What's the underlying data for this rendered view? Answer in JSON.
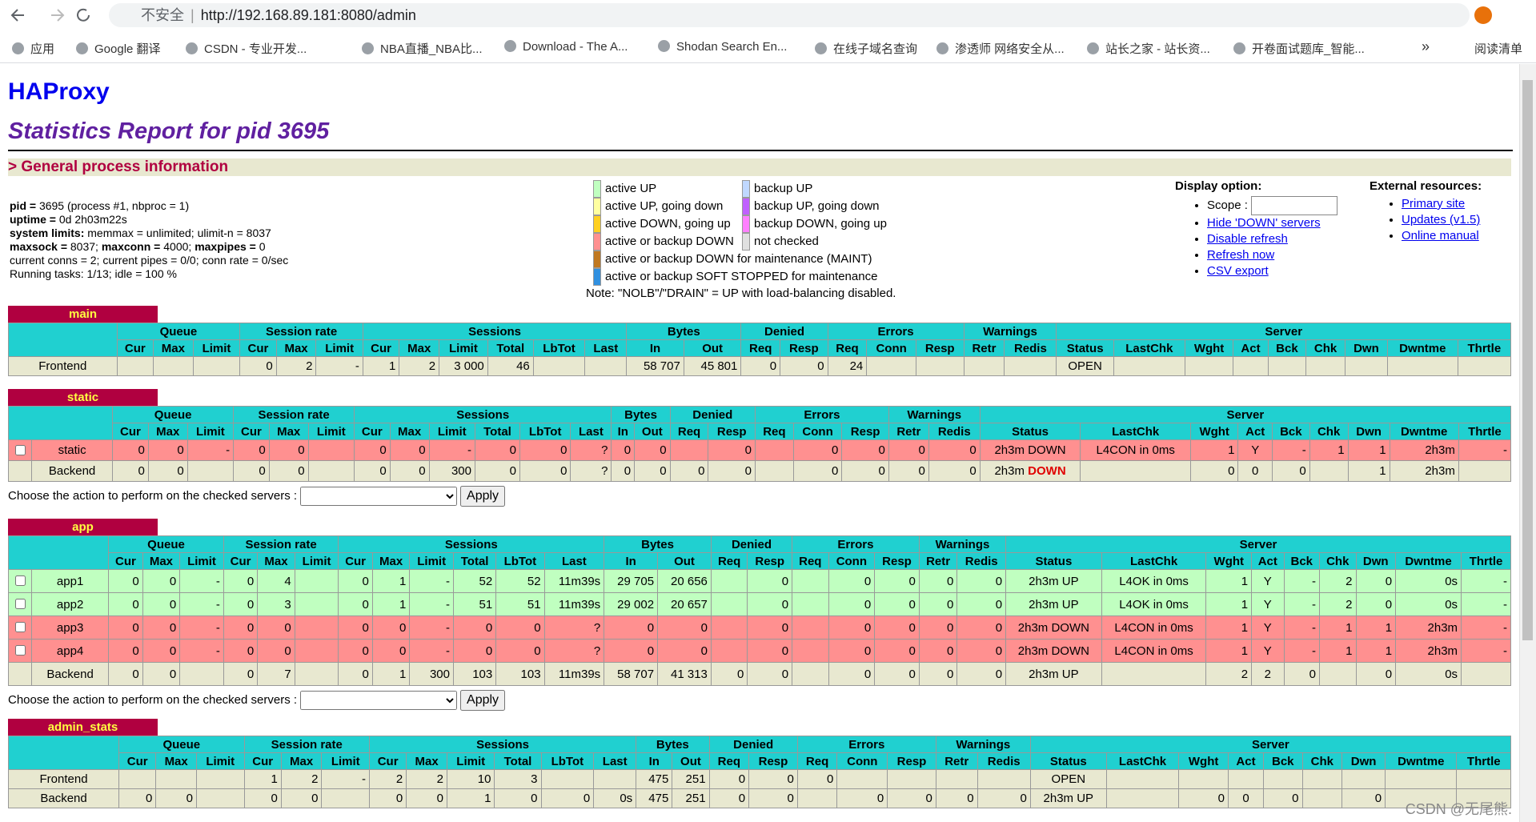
{
  "browser": {
    "security": "不安全",
    "url": "http://192.168.89.181:8080/admin",
    "bookmarks": [
      "应用",
      "Google 翻译",
      "CSDN - 专业开发...",
      "NBA直播_NBA比...",
      "Download - The A...",
      "Shodan Search En...",
      "在线子域名查询",
      "渗透师 网络安全从...",
      "站长之家 - 站长资...",
      "开卷面试题库_智能..."
    ],
    "overflow": "»",
    "reading_list": "阅读清单"
  },
  "header": {
    "title": "HAProxy",
    "subtitle": "Statistics Report for pid 3695",
    "section": "> General process information"
  },
  "process_info": [
    [
      {
        "text": "pid = ",
        "bold": true
      },
      {
        "text": "3695 (process #1, nbproc = 1)"
      }
    ],
    [
      {
        "text": "uptime = ",
        "bold": true
      },
      {
        "text": "0d 2h03m22s"
      }
    ],
    [
      {
        "text": "system limits: ",
        "bold": true
      },
      {
        "text": "memmax = unlimited; ulimit-n = 8037"
      }
    ],
    [
      {
        "text": "maxsock = ",
        "bold": true
      },
      {
        "text": "8037; "
      },
      {
        "text": "maxconn = ",
        "bold": true
      },
      {
        "text": "4000; "
      },
      {
        "text": "maxpipes = ",
        "bold": true
      },
      {
        "text": "0"
      }
    ],
    [
      {
        "text": "current conns = 2; current pipes = 0/0; conn rate = 0/sec"
      }
    ],
    [
      {
        "text": "Running tasks: 1/13; idle = 100 %"
      }
    ]
  ],
  "legend": {
    "items": [
      {
        "color": "#c0ffc0",
        "label": "active UP"
      },
      {
        "color": "#ffffa0",
        "label": "active UP, going down"
      },
      {
        "color": "#ffd020",
        "label": "active DOWN, going up"
      },
      {
        "color": "#ff9090",
        "label": "active or backup DOWN"
      },
      {
        "color": "#c07820",
        "label": "active or backup DOWN for maintenance (MAINT)"
      },
      {
        "color": "#3090e0",
        "label": "active or backup SOFT STOPPED for maintenance"
      },
      {
        "color": "#c0d8ff",
        "label": "backup UP"
      },
      {
        "color": "#c060ff",
        "label": "backup UP, going down"
      },
      {
        "color": "#ff80ff",
        "label": "backup DOWN, going up"
      },
      {
        "color": "#e0e0e0",
        "label": "not checked"
      }
    ],
    "note": "Note: \"NOLB\"/\"DRAIN\" = UP with load-balancing disabled."
  },
  "display_option": {
    "title": "Display option:",
    "scope": "Scope :",
    "links": [
      "Hide 'DOWN' servers",
      "Disable refresh",
      "Refresh now",
      "CSV export"
    ]
  },
  "external_resources": {
    "title": "External resources:",
    "links": [
      "Primary site",
      "Updates (v1.5)",
      "Online manual"
    ]
  },
  "columns": [
    {
      "name": "Queue",
      "cols": [
        "Cur",
        "Max",
        "Limit"
      ]
    },
    {
      "name": "Session rate",
      "cols": [
        "Cur",
        "Max",
        "Limit"
      ]
    },
    {
      "name": "Sessions",
      "cols": [
        "Cur",
        "Max",
        "Limit",
        "Total",
        "LbTot",
        "Last"
      ]
    },
    {
      "name": "Bytes",
      "cols": [
        "In",
        "Out"
      ]
    },
    {
      "name": "Denied",
      "cols": [
        "Req",
        "Resp"
      ]
    },
    {
      "name": "Errors",
      "cols": [
        "Req",
        "Conn",
        "Resp"
      ]
    },
    {
      "name": "Warnings",
      "cols": [
        "Retr",
        "Redis"
      ]
    },
    {
      "name": "Server",
      "cols": [
        "Status",
        "LastChk",
        "Wght",
        "Act",
        "Bck",
        "Chk",
        "Dwn",
        "Dwntme",
        "Thrtle"
      ]
    }
  ],
  "actions": {
    "label": "Choose the action to perform on the checked servers :",
    "button": "Apply"
  },
  "proxies": [
    {
      "name": "main",
      "checkboxes": false,
      "rows": [
        {
          "name": "Frontend",
          "state": "frontend",
          "cells": [
            null,
            null,
            null,
            "0",
            "2",
            "-",
            "1",
            "2",
            "3 000",
            "46",
            null,
            null,
            "58 707",
            "45 801",
            "0",
            "0",
            "24",
            null,
            null,
            null,
            null,
            "OPEN",
            null,
            null,
            null,
            null,
            null,
            null,
            null,
            null
          ]
        }
      ]
    },
    {
      "name": "static",
      "checkboxes": true,
      "actions": true,
      "rows": [
        {
          "name": "static",
          "state": "down",
          "checkbox": true,
          "cells": [
            "0",
            "0",
            "-",
            "0",
            "0",
            null,
            "0",
            "0",
            "-",
            "0",
            "0",
            "?",
            "0",
            "0",
            null,
            "0",
            null,
            "0",
            "0",
            "0",
            "0",
            "2h3m DOWN",
            "L4CON in 0ms",
            "1",
            "Y",
            "-",
            "1",
            "1",
            "2h3m",
            "-"
          ]
        },
        {
          "name": "Backend",
          "state": "backend",
          "cells": [
            "0",
            "0",
            null,
            "0",
            "0",
            null,
            "0",
            "0",
            "300",
            "0",
            "0",
            "?",
            "0",
            "0",
            "0",
            "0",
            null,
            "0",
            "0",
            "0",
            "0",
            [
              "2h3m",
              "DOWN"
            ],
            null,
            "0",
            "0",
            "0",
            null,
            "1",
            "2h3m",
            null
          ]
        }
      ]
    },
    {
      "name": "app",
      "checkboxes": true,
      "actions": true,
      "rows": [
        {
          "name": "app1",
          "state": "up",
          "checkbox": true,
          "cells": [
            "0",
            "0",
            "-",
            "0",
            "4",
            null,
            "0",
            "1",
            "-",
            "52",
            "52",
            "11m39s",
            "29 705",
            "20 656",
            null,
            "0",
            null,
            "0",
            "0",
            "0",
            "0",
            "2h3m UP",
            "L4OK in 0ms",
            "1",
            "Y",
            "-",
            "2",
            "0",
            "0s",
            "-"
          ]
        },
        {
          "name": "app2",
          "state": "up",
          "checkbox": true,
          "cells": [
            "0",
            "0",
            "-",
            "0",
            "3",
            null,
            "0",
            "1",
            "-",
            "51",
            "51",
            "11m39s",
            "29 002",
            "20 657",
            null,
            "0",
            null,
            "0",
            "0",
            "0",
            "0",
            "2h3m UP",
            "L4OK in 0ms",
            "1",
            "Y",
            "-",
            "2",
            "0",
            "0s",
            "-"
          ]
        },
        {
          "name": "app3",
          "state": "down",
          "checkbox": true,
          "cells": [
            "0",
            "0",
            "-",
            "0",
            "0",
            null,
            "0",
            "0",
            "-",
            "0",
            "0",
            "?",
            "0",
            "0",
            null,
            "0",
            null,
            "0",
            "0",
            "0",
            "0",
            "2h3m DOWN",
            "L4CON in 0ms",
            "1",
            "Y",
            "-",
            "1",
            "1",
            "2h3m",
            "-"
          ]
        },
        {
          "name": "app4",
          "state": "down",
          "checkbox": true,
          "cells": [
            "0",
            "0",
            "-",
            "0",
            "0",
            null,
            "0",
            "0",
            "-",
            "0",
            "0",
            "?",
            "0",
            "0",
            null,
            "0",
            null,
            "0",
            "0",
            "0",
            "0",
            "2h3m DOWN",
            "L4CON in 0ms",
            "1",
            "Y",
            "-",
            "1",
            "1",
            "2h3m",
            "-"
          ]
        },
        {
          "name": "Backend",
          "state": "backend",
          "cells": [
            "0",
            "0",
            null,
            "0",
            "7",
            null,
            "0",
            "1",
            "300",
            "103",
            "103",
            "11m39s",
            "58 707",
            "41 313",
            "0",
            "0",
            null,
            "0",
            "0",
            "0",
            "0",
            "2h3m UP",
            null,
            "2",
            "2",
            "0",
            null,
            "0",
            "0s",
            null
          ]
        }
      ]
    },
    {
      "name": "admin_stats",
      "checkboxes": false,
      "rows": [
        {
          "name": "Frontend",
          "state": "frontend",
          "cells": [
            null,
            null,
            null,
            "1",
            "2",
            "-",
            "2",
            "2",
            "10",
            "3",
            null,
            null,
            "475",
            "251",
            "0",
            "0",
            "0",
            null,
            null,
            null,
            null,
            "OPEN",
            null,
            null,
            null,
            null,
            null,
            null,
            null,
            null
          ]
        },
        {
          "name": "Backend",
          "state": "backend",
          "cells": [
            "0",
            "0",
            null,
            "0",
            "0",
            null,
            "0",
            "0",
            "1",
            "0",
            "0",
            "0s",
            "475",
            "251",
            "0",
            "0",
            null,
            "0",
            "0",
            "0",
            "0",
            "2h3m UP",
            null,
            "0",
            "0",
            "0",
            null,
            "0",
            null,
            null
          ]
        }
      ]
    }
  ],
  "watermark": "CSDN @无尾熊."
}
